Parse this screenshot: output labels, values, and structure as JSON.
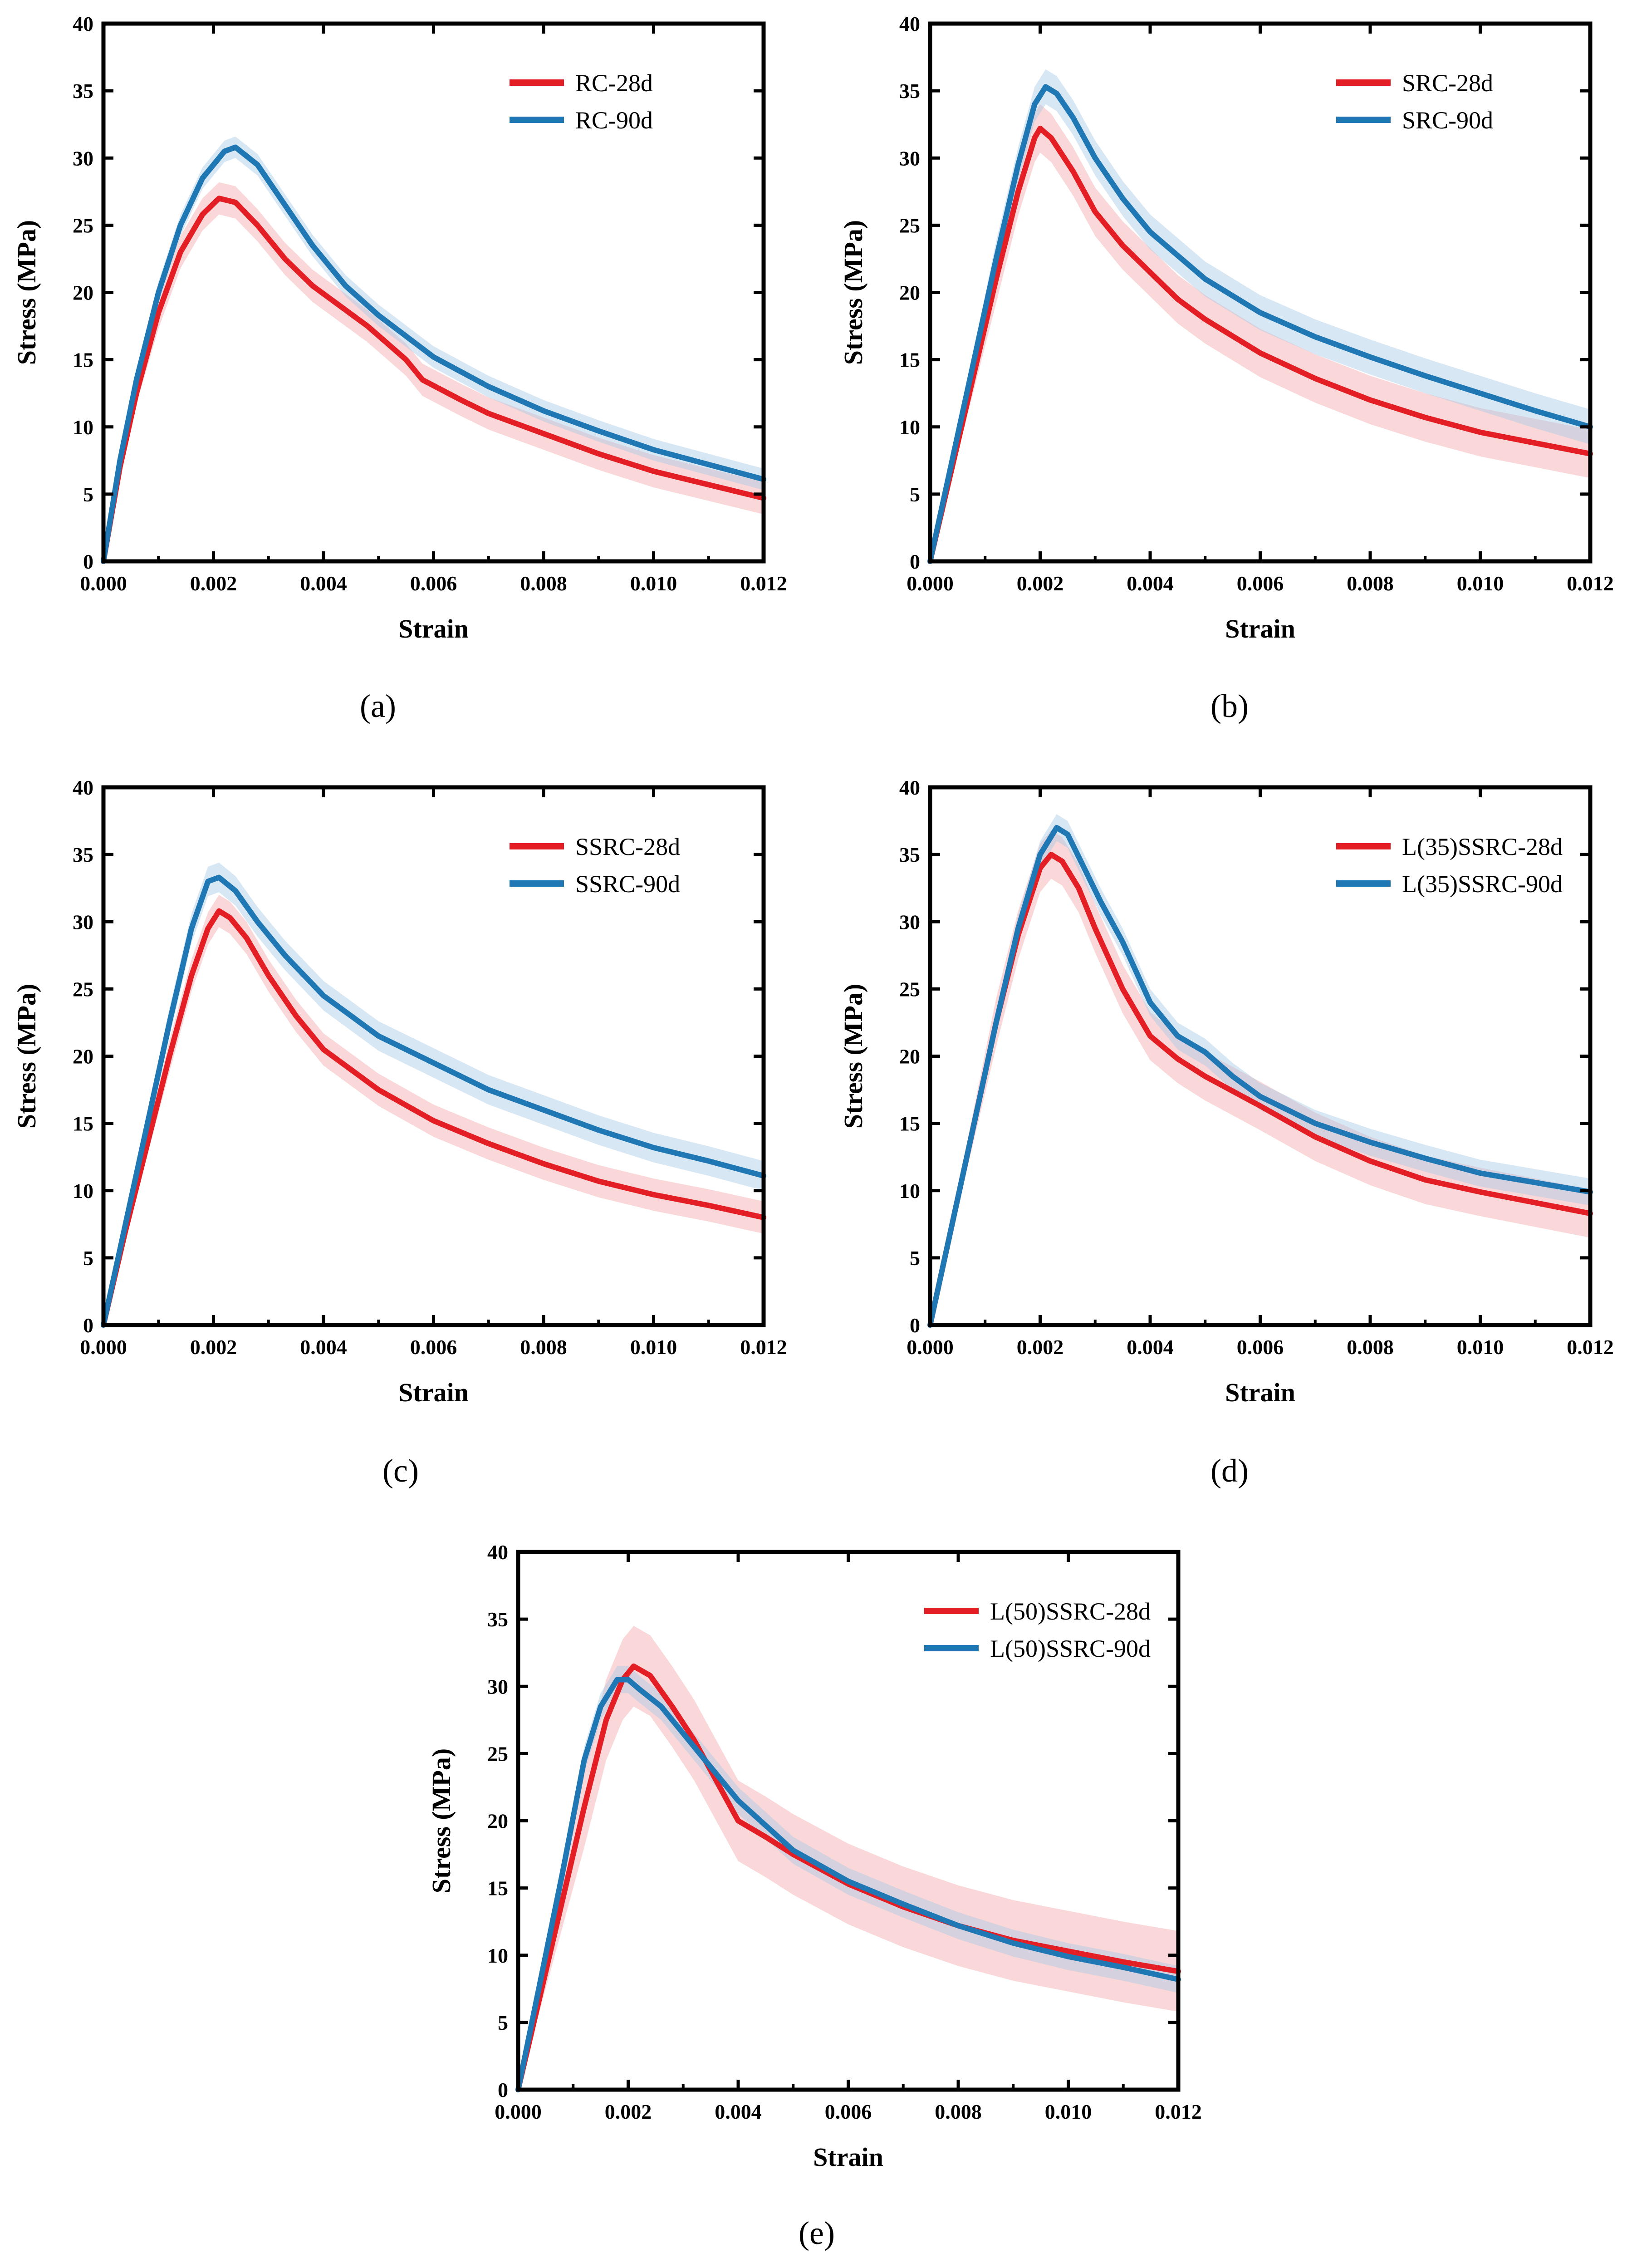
{
  "figure": {
    "captions": [
      "(a)",
      "(b)",
      "(c)",
      "(d)",
      "(e)"
    ]
  },
  "colors": {
    "red": "#e31e24",
    "blue": "#1f78b4",
    "red_band": "#f4a6a8",
    "blue_band": "#a9c9e6"
  },
  "chart_data": [
    {
      "id": "a",
      "type": "line",
      "caption_label": "a",
      "xlabel": "Strain",
      "ylabel": "Stress (MPa)",
      "xlim": [
        0,
        0.012
      ],
      "ylim": [
        0,
        40
      ],
      "xticks": [
        "0.000",
        "0.002",
        "0.004",
        "0.006",
        "0.008",
        "0.010",
        "0.012"
      ],
      "yticks": [
        "0",
        "5",
        "10",
        "15",
        "20",
        "25",
        "30",
        "35",
        "40"
      ],
      "legend_position": "top-right",
      "series": [
        {
          "name": "RC-28d",
          "color": "red",
          "band": 1.2,
          "x": [
            0,
            0.0003,
            0.0006,
            0.001,
            0.0014,
            0.0018,
            0.0021,
            0.0024,
            0.0028,
            0.0033,
            0.0038,
            0.0042,
            0.0048,
            0.0055,
            0.0058,
            0.0065,
            0.007,
            0.008,
            0.009,
            0.01,
            0.011,
            0.012
          ],
          "y": [
            0,
            7,
            12.5,
            18.5,
            23,
            25.8,
            27,
            26.7,
            25,
            22.5,
            20.5,
            19.3,
            17.5,
            15,
            13.5,
            12,
            11,
            9.5,
            8,
            6.7,
            5.7,
            4.7
          ]
        },
        {
          "name": "RC-90d",
          "color": "blue",
          "band": 0.8,
          "x": [
            0,
            0.0003,
            0.0006,
            0.001,
            0.0014,
            0.0018,
            0.0022,
            0.0024,
            0.0028,
            0.0033,
            0.0038,
            0.0044,
            0.005,
            0.006,
            0.007,
            0.008,
            0.009,
            0.01,
            0.011,
            0.012
          ],
          "y": [
            0,
            7.5,
            13.5,
            20,
            25,
            28.5,
            30.5,
            30.8,
            29.5,
            26.5,
            23.5,
            20.5,
            18.3,
            15.2,
            13,
            11.2,
            9.7,
            8.3,
            7.2,
            6.1
          ]
        }
      ]
    },
    {
      "id": "b",
      "type": "line",
      "caption_label": "b",
      "xlabel": "Strain",
      "ylabel": "Stress (MPa)",
      "xlim": [
        0,
        0.012
      ],
      "ylim": [
        0,
        40
      ],
      "xticks": [
        "0.000",
        "0.002",
        "0.004",
        "0.006",
        "0.008",
        "0.010",
        "0.012"
      ],
      "yticks": [
        "0",
        "5",
        "10",
        "15",
        "20",
        "25",
        "30",
        "35",
        "40"
      ],
      "legend_position": "top-right",
      "series": [
        {
          "name": "SRC-28d",
          "color": "red",
          "band": 1.8,
          "x": [
            0,
            0.0004,
            0.0008,
            0.0012,
            0.0016,
            0.0019,
            0.002,
            0.0022,
            0.0026,
            0.003,
            0.0035,
            0.004,
            0.0045,
            0.005,
            0.006,
            0.007,
            0.008,
            0.009,
            0.01,
            0.011,
            0.012
          ],
          "y": [
            0,
            7,
            14,
            21,
            27.5,
            31.5,
            32.2,
            31.5,
            29,
            26,
            23.5,
            21.5,
            19.5,
            18,
            15.5,
            13.6,
            12,
            10.7,
            9.6,
            8.8,
            8
          ]
        },
        {
          "name": "SRC-90d",
          "color": "blue",
          "band": 1.3,
          "x": [
            0,
            0.0004,
            0.0008,
            0.0012,
            0.0016,
            0.0019,
            0.0021,
            0.0023,
            0.0026,
            0.003,
            0.0035,
            0.004,
            0.005,
            0.006,
            0.007,
            0.008,
            0.009,
            0.01,
            0.011,
            0.012
          ],
          "y": [
            0,
            7.5,
            15,
            22.5,
            29.5,
            34,
            35.3,
            34.8,
            33,
            30,
            27,
            24.5,
            21,
            18.5,
            16.7,
            15.2,
            13.8,
            12.5,
            11.2,
            10
          ]
        }
      ]
    },
    {
      "id": "c",
      "type": "line",
      "caption_label": "c",
      "xlabel": "Strain",
      "ylabel": "Stress (MPa)",
      "xlim": [
        0,
        0.012
      ],
      "ylim": [
        0,
        40
      ],
      "xticks": [
        "0.000",
        "0.002",
        "0.004",
        "0.006",
        "0.008",
        "0.010",
        "0.012"
      ],
      "yticks": [
        "0",
        "5",
        "10",
        "15",
        "20",
        "25",
        "30",
        "35",
        "40"
      ],
      "legend_position": "top-right",
      "series": [
        {
          "name": "SSRC-28d",
          "color": "red",
          "band": 1.2,
          "x": [
            0,
            0.0004,
            0.0008,
            0.0012,
            0.0016,
            0.0019,
            0.0021,
            0.0023,
            0.0026,
            0.003,
            0.0035,
            0.004,
            0.005,
            0.006,
            0.007,
            0.008,
            0.009,
            0.01,
            0.011,
            0.012
          ],
          "y": [
            0,
            7,
            13.5,
            20,
            26,
            29.5,
            30.8,
            30.3,
            28.8,
            26,
            23,
            20.5,
            17.5,
            15.2,
            13.5,
            12,
            10.7,
            9.7,
            8.9,
            8
          ]
        },
        {
          "name": "SSRC-90d",
          "color": "blue",
          "band": 1.1,
          "x": [
            0,
            0.0004,
            0.0008,
            0.0012,
            0.0016,
            0.0019,
            0.0021,
            0.0024,
            0.0028,
            0.0033,
            0.004,
            0.005,
            0.006,
            0.007,
            0.008,
            0.009,
            0.01,
            0.011,
            0.012
          ],
          "y": [
            0,
            7.5,
            15,
            22.5,
            29.5,
            33,
            33.3,
            32.3,
            30,
            27.5,
            24.5,
            21.5,
            19.5,
            17.5,
            16,
            14.5,
            13.2,
            12.2,
            11.1
          ]
        }
      ]
    },
    {
      "id": "d",
      "type": "line",
      "caption_label": "d",
      "xlabel": "Strain",
      "ylabel": "Stress (MPa)",
      "xlim": [
        0,
        0.012
      ],
      "ylim": [
        0,
        40
      ],
      "xticks": [
        "0.000",
        "0.002",
        "0.004",
        "0.006",
        "0.008",
        "0.010",
        "0.012"
      ],
      "yticks": [
        "0",
        "5",
        "10",
        "15",
        "20",
        "25",
        "30",
        "35",
        "40"
      ],
      "legend_position": "top-right",
      "series": [
        {
          "name": "L(35)SSRC-28d",
          "color": "red",
          "band": 1.8,
          "x": [
            0,
            0.0004,
            0.0008,
            0.0012,
            0.0016,
            0.002,
            0.0022,
            0.0024,
            0.0027,
            0.003,
            0.0035,
            0.004,
            0.0045,
            0.005,
            0.006,
            0.007,
            0.008,
            0.009,
            0.01,
            0.011,
            0.012
          ],
          "y": [
            0,
            7.5,
            15,
            22.5,
            29,
            34,
            35,
            34.5,
            32.5,
            29.5,
            25,
            21.5,
            19.8,
            18.5,
            16.3,
            14,
            12.2,
            10.8,
            9.9,
            9.1,
            8.3
          ]
        },
        {
          "name": "L(35)SSRC-90d",
          "color": "blue",
          "band": 1.0,
          "x": [
            0,
            0.0004,
            0.0008,
            0.0012,
            0.0016,
            0.002,
            0.0023,
            0.0025,
            0.0028,
            0.0031,
            0.0035,
            0.004,
            0.0045,
            0.005,
            0.0055,
            0.006,
            0.007,
            0.008,
            0.009,
            0.01,
            0.011,
            0.012
          ],
          "y": [
            0,
            7.5,
            15,
            22.5,
            29.5,
            35,
            37,
            36.5,
            34,
            31.5,
            28.5,
            24,
            21.5,
            20.3,
            18.5,
            17,
            15,
            13.6,
            12.4,
            11.3,
            10.6,
            9.9
          ]
        }
      ]
    },
    {
      "id": "e",
      "type": "line",
      "caption_label": "e",
      "xlabel": "Strain",
      "ylabel": "Stress (MPa)",
      "xlim": [
        0,
        0.012
      ],
      "ylim": [
        0,
        40
      ],
      "xticks": [
        "0.000",
        "0.002",
        "0.004",
        "0.006",
        "0.008",
        "0.010",
        "0.012"
      ],
      "yticks": [
        "0",
        "5",
        "10",
        "15",
        "20",
        "25",
        "30",
        "35",
        "40"
      ],
      "legend_position": "top-right",
      "series": [
        {
          "name": "L(50)SSRC-28d",
          "color": "red",
          "band": 3.0,
          "x": [
            0,
            0.0004,
            0.0008,
            0.0012,
            0.0016,
            0.0019,
            0.0021,
            0.0024,
            0.0028,
            0.0032,
            0.0036,
            0.004,
            0.0045,
            0.005,
            0.006,
            0.007,
            0.008,
            0.009,
            0.01,
            0.011,
            0.012
          ],
          "y": [
            0,
            7,
            14,
            21,
            27.5,
            30.5,
            31.5,
            30.8,
            28.5,
            26,
            23,
            20,
            18.8,
            17.5,
            15.3,
            13.6,
            12.2,
            11.1,
            10.3,
            9.5,
            8.8
          ]
        },
        {
          "name": "L(50)SSRC-90d",
          "color": "blue",
          "band": 1.0,
          "x": [
            0,
            0.0004,
            0.0008,
            0.0012,
            0.0015,
            0.0018,
            0.002,
            0.0022,
            0.0026,
            0.003,
            0.0035,
            0.004,
            0.005,
            0.006,
            0.007,
            0.008,
            0.009,
            0.01,
            0.011,
            0.012
          ],
          "y": [
            0,
            8,
            16,
            24.5,
            28.5,
            30.5,
            30.5,
            29.8,
            28.5,
            26.5,
            24,
            21.5,
            17.8,
            15.5,
            13.8,
            12.2,
            10.9,
            9.9,
            9.1,
            8.2
          ]
        }
      ]
    }
  ]
}
